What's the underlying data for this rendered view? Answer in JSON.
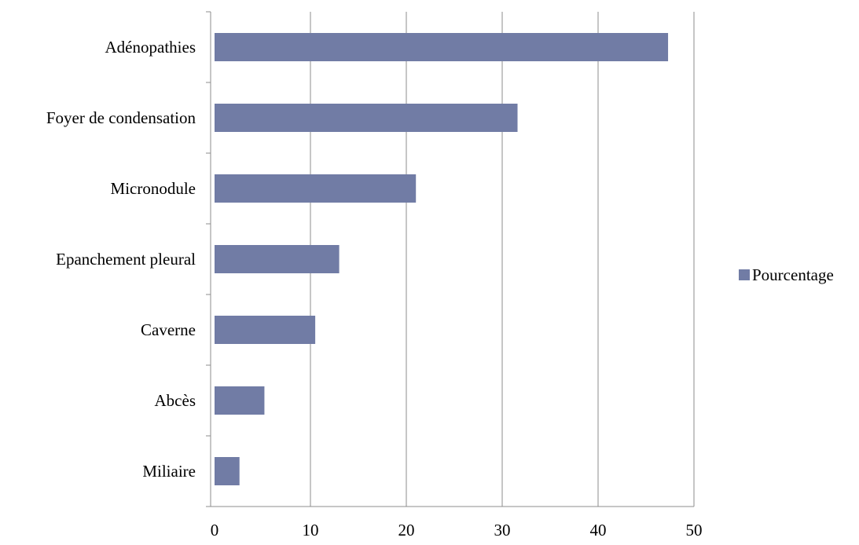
{
  "chart_data": {
    "type": "bar",
    "orientation": "horizontal",
    "title": "",
    "xlabel": "",
    "ylabel": "",
    "categories": [
      "Miliaire",
      "Abcès",
      "Caverne",
      "Epanchement pleural",
      "Micronodule",
      "Foyer de condensation",
      "Adénopathies"
    ],
    "series": [
      {
        "name": "Pourcentage",
        "values": [
          2.6,
          5.2,
          10.5,
          13.0,
          21.0,
          31.6,
          47.3
        ],
        "color": "#717ca5"
      }
    ],
    "xlim": [
      0,
      50
    ],
    "xticks": [
      0,
      10,
      20,
      30,
      40,
      50
    ],
    "gridlines": "vertical",
    "legend": "right"
  }
}
